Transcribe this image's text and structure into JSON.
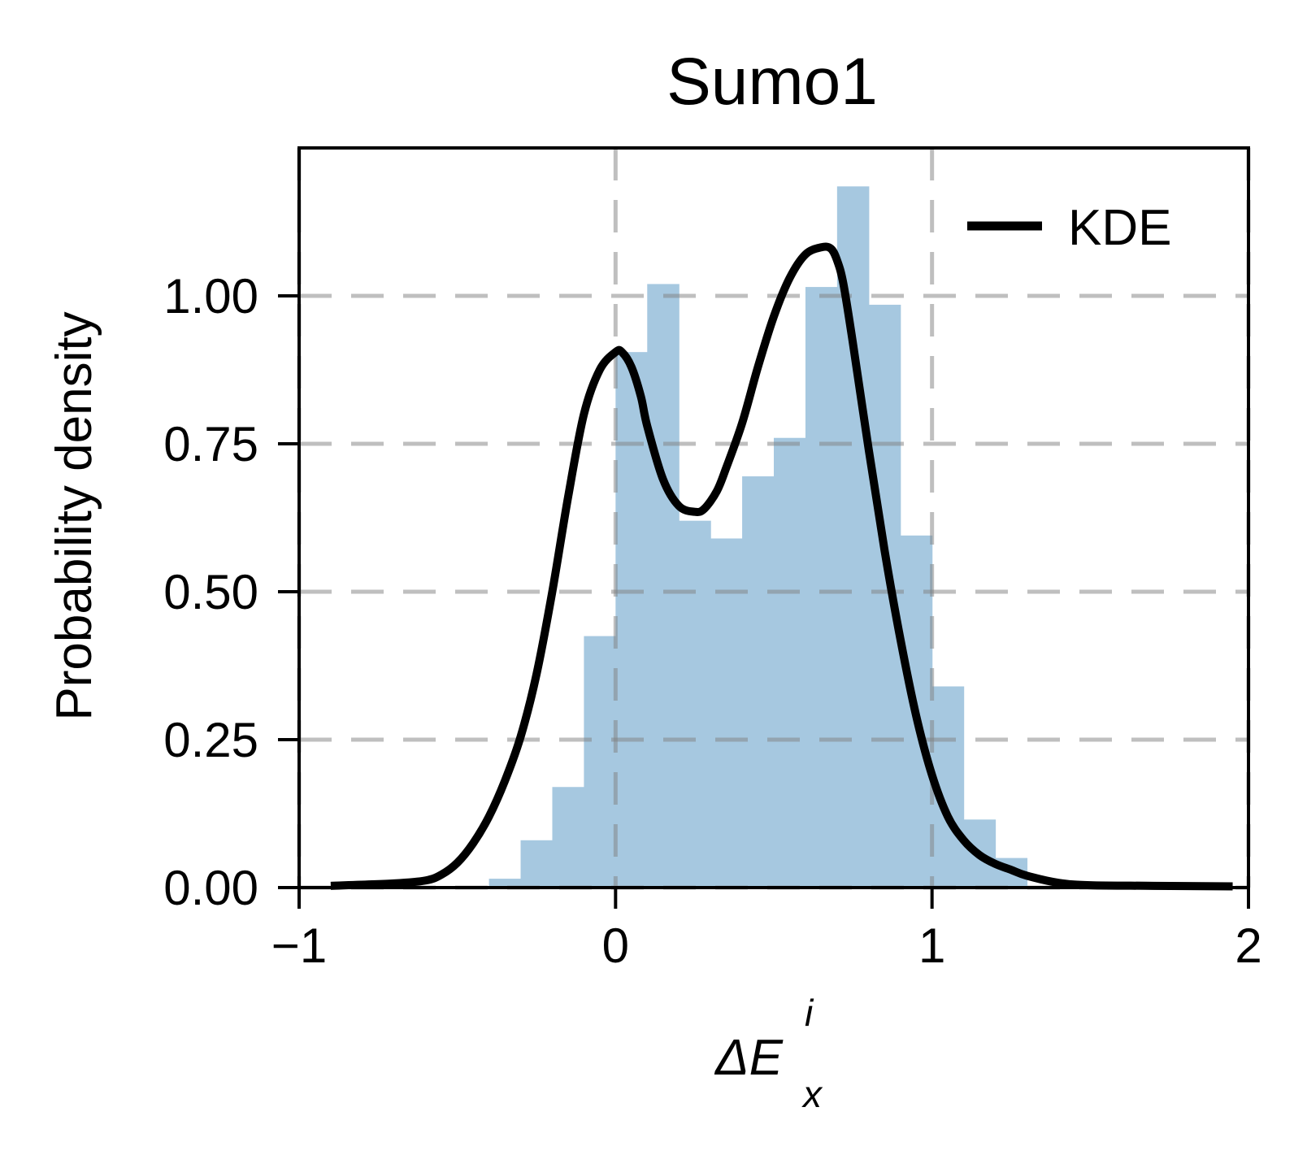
{
  "chart_data": {
    "type": "histogram",
    "title": "Sumo1",
    "xlabel": {
      "symbol": "ΔE",
      "subscript": "x",
      "superscript": "i"
    },
    "ylabel": "Probability density",
    "xlim": [
      -1,
      2
    ],
    "ylim": [
      0,
      1.25
    ],
    "xticks": [
      -1,
      0,
      1,
      2
    ],
    "xtick_labels": [
      "−1",
      "0",
      "1",
      "2"
    ],
    "yticks": [
      0,
      0.25,
      0.5,
      0.75,
      1.0
    ],
    "ytick_labels": [
      "0.00",
      "0.25",
      "0.50",
      "0.75",
      "1.00"
    ],
    "grid": true,
    "legend": {
      "position": "top-right",
      "entries": [
        "KDE"
      ]
    },
    "histogram": {
      "color": "#a6c8e0",
      "bin_edges": [
        -0.4,
        -0.3,
        -0.2,
        -0.1,
        0.0,
        0.1,
        0.2,
        0.3,
        0.4,
        0.5,
        0.6,
        0.7,
        0.8,
        0.9,
        1.0,
        1.1,
        1.2,
        1.3
      ],
      "values": [
        0.015,
        0.08,
        0.17,
        0.425,
        0.905,
        1.02,
        0.62,
        0.59,
        0.695,
        0.76,
        1.015,
        1.185,
        0.985,
        0.595,
        0.34,
        0.115,
        0.05
      ]
    },
    "kde": {
      "name": "KDE",
      "color": "#000000",
      "x": [
        -0.9,
        -0.7,
        -0.6,
        -0.55,
        -0.5,
        -0.45,
        -0.4,
        -0.35,
        -0.3,
        -0.25,
        -0.2,
        -0.15,
        -0.1,
        -0.05,
        0.0,
        0.02,
        0.05,
        0.08,
        0.1,
        0.15,
        0.2,
        0.25,
        0.28,
        0.32,
        0.35,
        0.4,
        0.45,
        0.5,
        0.55,
        0.6,
        0.65,
        0.68,
        0.7,
        0.72,
        0.75,
        0.8,
        0.85,
        0.9,
        0.95,
        1.0,
        1.05,
        1.1,
        1.15,
        1.2,
        1.25,
        1.3,
        1.4,
        1.5,
        1.7,
        1.95
      ],
      "y": [
        0.003,
        0.007,
        0.012,
        0.022,
        0.042,
        0.075,
        0.12,
        0.18,
        0.255,
        0.36,
        0.5,
        0.66,
        0.8,
        0.875,
        0.905,
        0.905,
        0.88,
        0.83,
        0.78,
        0.69,
        0.645,
        0.635,
        0.64,
        0.67,
        0.71,
        0.785,
        0.88,
        0.965,
        1.03,
        1.07,
        1.082,
        1.08,
        1.06,
        1.02,
        0.92,
        0.74,
        0.57,
        0.42,
        0.29,
        0.19,
        0.12,
        0.08,
        0.055,
        0.04,
        0.03,
        0.02,
        0.008,
        0.004,
        0.003,
        0.002
      ]
    }
  }
}
